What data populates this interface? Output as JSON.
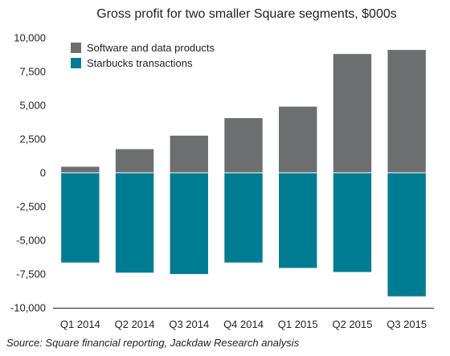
{
  "chart_data": {
    "type": "bar",
    "stacked": true,
    "title": "Gross profit for two smaller Square segments, $000s",
    "categories": [
      "Q1 2014",
      "Q2 2014",
      "Q3 2014",
      "Q4 2014",
      "Q1 2015",
      "Q2 2015",
      "Q3 2015"
    ],
    "series": [
      {
        "name": "Software and data products",
        "color": "#6d6e70",
        "values": [
          450,
          1750,
          2750,
          4050,
          4900,
          8800,
          9100
        ]
      },
      {
        "name": "Starbucks transactions",
        "color": "#007c92",
        "values": [
          -6650,
          -7400,
          -7500,
          -6650,
          -7050,
          -7350,
          -9150
        ]
      }
    ],
    "ylim": [
      -10000,
      10000
    ],
    "yticks": [
      "10,000",
      "7,500",
      "5,000",
      "2,500",
      "0",
      "-2,500",
      "-5,000",
      "-7,500",
      "-10,000"
    ],
    "ytick_values": [
      10000,
      7500,
      5000,
      2500,
      0,
      -2500,
      -5000,
      -7500,
      -10000
    ],
    "grid": false,
    "legend": "top-left",
    "source": "Source: Square financial reporting, Jackdaw Research analysis"
  }
}
